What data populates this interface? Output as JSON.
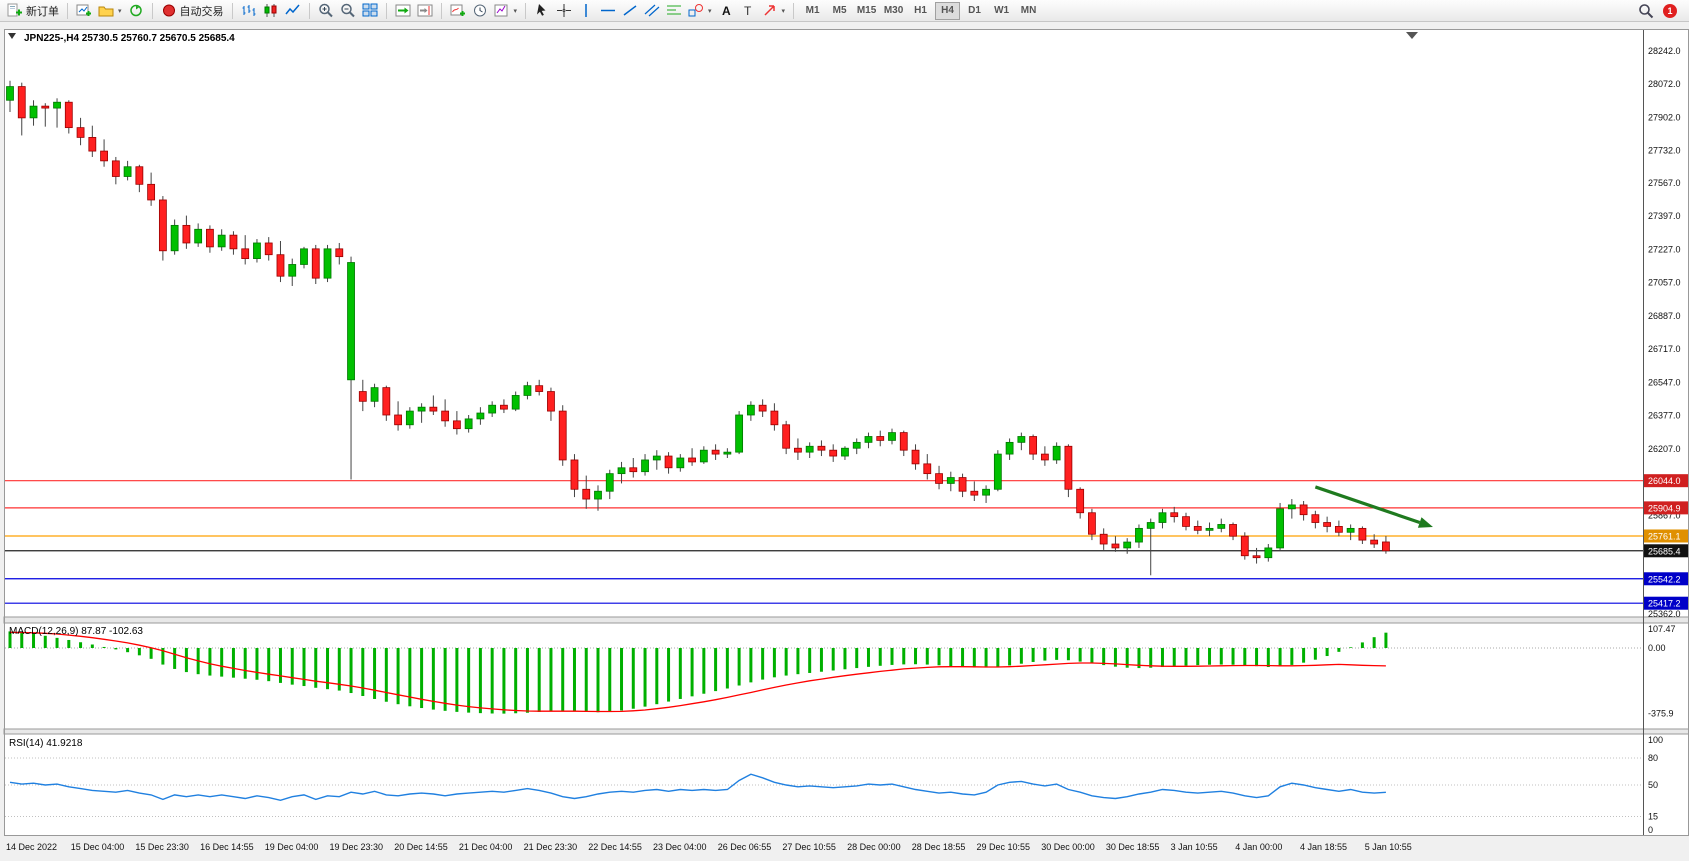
{
  "window": {
    "notification_count": "1"
  },
  "toolbar": {
    "new_order_label": "新订单",
    "autotrading_label": "自动交易",
    "timeframes": [
      "M1",
      "M5",
      "M15",
      "M30",
      "H1",
      "H4",
      "D1",
      "W1",
      "MN"
    ],
    "active_timeframe": "H4"
  },
  "panels": {
    "main_title": "JPN225-,H4  25730.5 25760.7 25670.5 25685.4",
    "macd_label": "MACD(12,26,9) 87.87 -102.63",
    "rsi_label": "RSI(14) 41.9218"
  },
  "colors": {
    "bull": "#00C000",
    "bull_border": "#007700",
    "bear": "#FF2020",
    "bear_border": "#990000",
    "wick": "#444444",
    "macd_hist": "#00B000",
    "macd_signal": "#FF0000",
    "rsi_line": "#2080E0",
    "annotation": "#1F7A1F",
    "axis_text": "#111111"
  },
  "chart_data": [
    {
      "type": "candlestick",
      "symbol": "JPN225-",
      "timeframe": "H4",
      "current_ohlc": {
        "open": 25730.5,
        "high": 25760.7,
        "low": 25670.5,
        "close": 25685.4
      },
      "ylim": [
        25347,
        28340
      ],
      "y_ticks": [
        28242.0,
        28072.0,
        27902.0,
        27732.0,
        27567.0,
        27397.0,
        27227.0,
        27057.0,
        26887.0,
        26717.0,
        26547.0,
        26377.0,
        26207.0,
        25867.0,
        25362.0
      ],
      "x_labels": [
        "14 Dec 2022",
        "15 Dec 04:00",
        "15 Dec 23:30",
        "16 Dec 14:55",
        "19 Dec 04:00",
        "19 Dec 23:30",
        "20 Dec 14:55",
        "21 Dec 04:00",
        "21 Dec 23:30",
        "22 Dec 14:55",
        "23 Dec 04:00",
        "26 Dec 06:55",
        "27 Dec 10:55",
        "28 Dec 00:00",
        "28 Dec 18:55",
        "29 Dec 10:55",
        "30 Dec 00:00",
        "30 Dec 18:55",
        "3 Jan 10:55",
        "4 Jan 00:00",
        "4 Jan 18:55",
        "5 Jan 10:55"
      ],
      "levels": [
        {
          "name": "resistance-line-1",
          "price": 26044.0,
          "label": "26044.0",
          "line": "#FF3030",
          "badge": "#D02020"
        },
        {
          "name": "resistance-line-2",
          "price": 25904.9,
          "label": "25904.9",
          "line": "#FF3030",
          "badge": "#D02020"
        },
        {
          "name": "pivot-line",
          "price": 25761.1,
          "label": "25761.1",
          "line": "#FFA000",
          "badge": "#E09000"
        },
        {
          "name": "current-price-line",
          "price": 25685.4,
          "label": "25685.4",
          "line": "#222222",
          "badge": "#111111"
        },
        {
          "name": "support-line-1",
          "price": 25542.2,
          "label": "25542.2",
          "line": "#0000E0",
          "badge": "#0000C8"
        },
        {
          "name": "support-line-2",
          "price": 25417.2,
          "label": "25417.2",
          "line": "#0000E0",
          "badge": "#0000C8"
        }
      ],
      "annotations": [
        {
          "type": "arrow",
          "color": "#1F7A1F",
          "from": {
            "bar": 111,
            "price": 26012
          },
          "to": {
            "bar": 121,
            "price": 25807
          }
        }
      ],
      "candles": [
        [
          27990,
          28090,
          27930,
          28060
        ],
        [
          28060,
          28080,
          27810,
          27900
        ],
        [
          27900,
          27990,
          27860,
          27960
        ],
        [
          27960,
          27975,
          27855,
          27950
        ],
        [
          27950,
          28000,
          27850,
          27980
        ],
        [
          27980,
          27990,
          27820,
          27850
        ],
        [
          27850,
          27900,
          27760,
          27800
        ],
        [
          27800,
          27860,
          27700,
          27730
        ],
        [
          27730,
          27790,
          27650,
          27680
        ],
        [
          27680,
          27700,
          27560,
          27600
        ],
        [
          27600,
          27680,
          27580,
          27650
        ],
        [
          27650,
          27660,
          27520,
          27560
        ],
        [
          27560,
          27620,
          27450,
          27480
        ],
        [
          27480,
          27500,
          27170,
          27220
        ],
        [
          27220,
          27380,
          27200,
          27350
        ],
        [
          27350,
          27400,
          27230,
          27260
        ],
        [
          27260,
          27360,
          27240,
          27330
        ],
        [
          27330,
          27350,
          27210,
          27240
        ],
        [
          27240,
          27330,
          27220,
          27300
        ],
        [
          27300,
          27320,
          27200,
          27230
        ],
        [
          27230,
          27300,
          27150,
          27180
        ],
        [
          27180,
          27280,
          27160,
          27260
        ],
        [
          27260,
          27290,
          27170,
          27200
        ],
        [
          27200,
          27270,
          27060,
          27090
        ],
        [
          27090,
          27180,
          27040,
          27150
        ],
        [
          27150,
          27240,
          27130,
          27230
        ],
        [
          27230,
          27250,
          27050,
          27080
        ],
        [
          27080,
          27250,
          27060,
          27230
        ],
        [
          27230,
          27260,
          27150,
          27190
        ],
        [
          26560,
          27190,
          26050,
          27160
        ],
        [
          26500,
          26560,
          26400,
          26450
        ],
        [
          26450,
          26540,
          26420,
          26520
        ],
        [
          26520,
          26530,
          26350,
          26380
        ],
        [
          26380,
          26450,
          26300,
          26330
        ],
        [
          26330,
          26420,
          26310,
          26400
        ],
        [
          26400,
          26440,
          26340,
          26420
        ],
        [
          26420,
          26480,
          26380,
          26400
        ],
        [
          26400,
          26460,
          26320,
          26350
        ],
        [
          26350,
          26400,
          26280,
          26310
        ],
        [
          26310,
          26380,
          26290,
          26360
        ],
        [
          26360,
          26420,
          26330,
          26390
        ],
        [
          26390,
          26450,
          26370,
          26430
        ],
        [
          26430,
          26460,
          26390,
          26410
        ],
        [
          26410,
          26500,
          26400,
          26480
        ],
        [
          26480,
          26550,
          26460,
          26530
        ],
        [
          26530,
          26560,
          26480,
          26500
        ],
        [
          26500,
          26520,
          26350,
          26400
        ],
        [
          26400,
          26430,
          26120,
          26150
        ],
        [
          26150,
          26180,
          25960,
          26000
        ],
        [
          26000,
          26070,
          25900,
          25950
        ],
        [
          25950,
          26020,
          25890,
          25990
        ],
        [
          25990,
          26100,
          25950,
          26080
        ],
        [
          26080,
          26140,
          26030,
          26110
        ],
        [
          26110,
          26160,
          26060,
          26090
        ],
        [
          26090,
          26180,
          26070,
          26150
        ],
        [
          26150,
          26200,
          26100,
          26170
        ],
        [
          26170,
          26190,
          26080,
          26110
        ],
        [
          26110,
          26180,
          26090,
          26160
        ],
        [
          26160,
          26210,
          26120,
          26140
        ],
        [
          26140,
          26220,
          26130,
          26200
        ],
        [
          26200,
          26230,
          26150,
          26180
        ],
        [
          26180,
          26210,
          26160,
          26190
        ],
        [
          26190,
          26400,
          26180,
          26380
        ],
        [
          26380,
          26450,
          26350,
          26430
        ],
        [
          26430,
          26460,
          26370,
          26400
        ],
        [
          26400,
          26440,
          26300,
          26330
        ],
        [
          26330,
          26350,
          26180,
          26210
        ],
        [
          26210,
          26260,
          26150,
          26190
        ],
        [
          26190,
          26240,
          26160,
          26220
        ],
        [
          26220,
          26250,
          26170,
          26200
        ],
        [
          26200,
          26230,
          26140,
          26170
        ],
        [
          26170,
          26220,
          26150,
          26210
        ],
        [
          26210,
          26260,
          26180,
          26240
        ],
        [
          26240,
          26290,
          26210,
          26270
        ],
        [
          26270,
          26300,
          26220,
          26250
        ],
        [
          26250,
          26310,
          26230,
          26290
        ],
        [
          26290,
          26300,
          26170,
          26200
        ],
        [
          26200,
          26230,
          26100,
          26130
        ],
        [
          26130,
          26180,
          26050,
          26080
        ],
        [
          26080,
          26120,
          26000,
          26030
        ],
        [
          26030,
          26090,
          25990,
          26060
        ],
        [
          26060,
          26080,
          25960,
          25990
        ],
        [
          25990,
          26040,
          25940,
          25970
        ],
        [
          25970,
          26020,
          25930,
          26000
        ],
        [
          26000,
          26200,
          25990,
          26180
        ],
        [
          26180,
          26260,
          26150,
          26240
        ],
        [
          26240,
          26290,
          26200,
          26270
        ],
        [
          26270,
          26280,
          26150,
          26180
        ],
        [
          26180,
          26220,
          26120,
          26150
        ],
        [
          26150,
          26240,
          26130,
          26220
        ],
        [
          26220,
          26230,
          25960,
          26000
        ],
        [
          26000,
          26010,
          25850,
          25880
        ],
        [
          25880,
          25900,
          25740,
          25770
        ],
        [
          25770,
          25800,
          25690,
          25720
        ],
        [
          25720,
          25760,
          25680,
          25700
        ],
        [
          25700,
          25750,
          25670,
          25730
        ],
        [
          25730,
          25820,
          25700,
          25800
        ],
        [
          25800,
          25850,
          25560,
          25830
        ],
        [
          25830,
          25900,
          25800,
          25880
        ],
        [
          25880,
          25910,
          25830,
          25860
        ],
        [
          25860,
          25880,
          25790,
          25810
        ],
        [
          25810,
          25840,
          25770,
          25790
        ],
        [
          25790,
          25830,
          25760,
          25800
        ],
        [
          25800,
          25850,
          25780,
          25820
        ],
        [
          25820,
          25830,
          25740,
          25760
        ],
        [
          25760,
          25780,
          25640,
          25660
        ],
        [
          25660,
          25700,
          25620,
          25650
        ],
        [
          25650,
          25720,
          25630,
          25700
        ],
        [
          25700,
          25930,
          25690,
          25900
        ],
        [
          25900,
          25950,
          25850,
          25920
        ],
        [
          25920,
          25940,
          25840,
          25870
        ],
        [
          25870,
          25890,
          25800,
          25830
        ],
        [
          25830,
          25860,
          25780,
          25810
        ],
        [
          25810,
          25840,
          25760,
          25780
        ],
        [
          25780,
          25820,
          25740,
          25800
        ],
        [
          25800,
          25810,
          25720,
          25740
        ],
        [
          25740,
          25770,
          25700,
          25720
        ],
        [
          25730.5,
          25760.7,
          25670.5,
          25685.4
        ]
      ]
    },
    {
      "type": "bar",
      "name": "MACD(12,26,9)",
      "current_main": 87.87,
      "current_signal": -102.63,
      "axis": [
        [
          107.47,
          "107.47"
        ],
        [
          0,
          "0.00"
        ],
        [
          -375.9,
          "-375.9"
        ]
      ],
      "values": [
        95,
        88,
        80,
        70,
        58,
        46,
        33,
        20,
        6,
        -8,
        -24,
        -42,
        -62,
        -95,
        -120,
        -138,
        -150,
        -158,
        -164,
        -170,
        -176,
        -182,
        -190,
        -200,
        -210,
        -218,
        -228,
        -236,
        -244,
        -258,
        -275,
        -292,
        -308,
        -322,
        -334,
        -344,
        -353,
        -360,
        -366,
        -370,
        -373,
        -375,
        -375.9,
        -374,
        -371,
        -367,
        -363,
        -362,
        -364,
        -367,
        -368,
        -365,
        -358,
        -348,
        -336,
        -322,
        -307,
        -292,
        -277,
        -262,
        -247,
        -232,
        -215,
        -197,
        -181,
        -168,
        -158,
        -150,
        -143,
        -136,
        -129,
        -122,
        -115,
        -108,
        -102,
        -97,
        -94,
        -93,
        -95,
        -99,
        -104,
        -109,
        -112,
        -112,
        -108,
        -100,
        -90,
        -80,
        -72,
        -68,
        -70,
        -78,
        -88,
        -98,
        -107,
        -113,
        -115,
        -113,
        -109,
        -105,
        -101,
        -98,
        -96,
        -95,
        -96,
        -99,
        -104,
        -109,
        -106,
        -97,
        -84,
        -67,
        -46,
        -22,
        4,
        32,
        62,
        87.87
      ],
      "signal": [
        90,
        89,
        87,
        84,
        80,
        74,
        67,
        59,
        50,
        40,
        29,
        16,
        2,
        -16,
        -36,
        -56,
        -74,
        -90,
        -104,
        -117,
        -129,
        -140,
        -150,
        -160,
        -170,
        -180,
        -190,
        -199,
        -208,
        -218,
        -229,
        -242,
        -255,
        -268,
        -281,
        -294,
        -306,
        -317,
        -327,
        -336,
        -343,
        -349,
        -354,
        -358,
        -361,
        -362,
        -362,
        -362,
        -362,
        -363,
        -364,
        -364,
        -363,
        -360,
        -355,
        -348,
        -340,
        -330,
        -319,
        -308,
        -296,
        -283,
        -269,
        -255,
        -240,
        -226,
        -212,
        -200,
        -188,
        -178,
        -168,
        -159,
        -150,
        -142,
        -134,
        -127,
        -120,
        -115,
        -111,
        -108,
        -107,
        -107,
        -108,
        -109,
        -109,
        -107,
        -104,
        -100,
        -96,
        -92,
        -88,
        -86,
        -86,
        -88,
        -91,
        -95,
        -99,
        -102,
        -104,
        -105,
        -105,
        -104,
        -103,
        -102,
        -101,
        -100,
        -100,
        -101,
        -102,
        -102,
        -101,
        -99,
        -96,
        -94,
        -96,
        -99,
        -101,
        -102.63
      ]
    },
    {
      "type": "line",
      "name": "RSI(14)",
      "current": 41.9218,
      "range": [
        0,
        100
      ],
      "levels": [
        80,
        50,
        15
      ],
      "axis": [
        [
          100,
          "100"
        ],
        [
          80,
          "80"
        ],
        [
          50,
          "50"
        ],
        [
          15,
          "15"
        ],
        [
          0,
          "0"
        ]
      ],
      "values": [
        53,
        51,
        52,
        50,
        51,
        48,
        46,
        44,
        43,
        42,
        44,
        41,
        39,
        34,
        39,
        37,
        39,
        37,
        39,
        37,
        35,
        38,
        36,
        33,
        37,
        39,
        34,
        38,
        37,
        42,
        40,
        43,
        39,
        38,
        40,
        41,
        40,
        38,
        40,
        41,
        42,
        43,
        42,
        44,
        46,
        44,
        41,
        37,
        35,
        37,
        40,
        42,
        43,
        42,
        44,
        45,
        43,
        45,
        44,
        45,
        44,
        45,
        55,
        62,
        58,
        53,
        50,
        48,
        49,
        48,
        47,
        48,
        49,
        51,
        50,
        51,
        48,
        45,
        43,
        41,
        42,
        40,
        39,
        42,
        50,
        53,
        54,
        51,
        49,
        51,
        45,
        42,
        38,
        36,
        35,
        37,
        40,
        42,
        45,
        44,
        42,
        41,
        42,
        43,
        41,
        38,
        36,
        38,
        48,
        52,
        50,
        47,
        45,
        43,
        45,
        42,
        41,
        41.92
      ]
    }
  ]
}
